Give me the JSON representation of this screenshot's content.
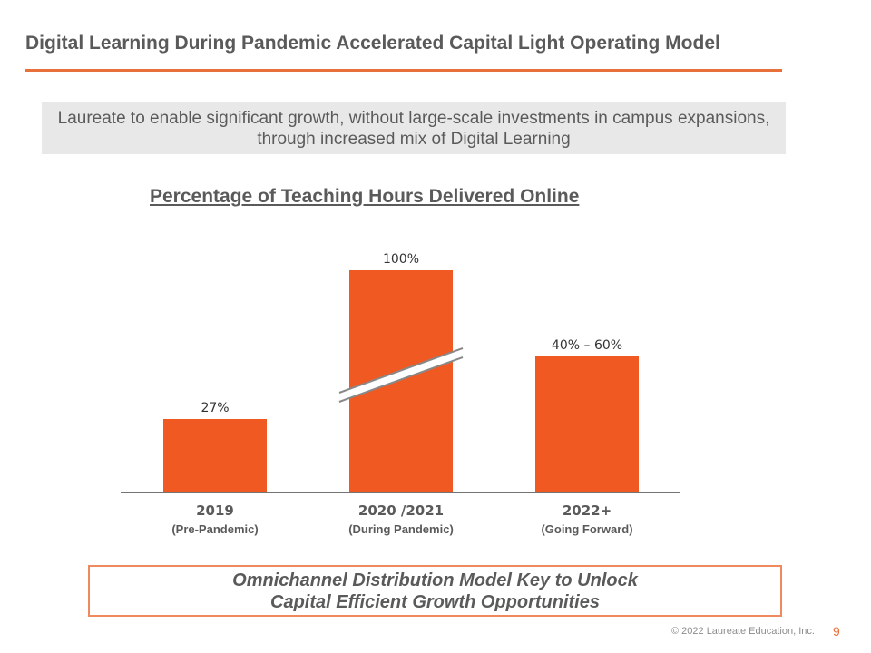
{
  "slide": {
    "title": "Digital Learning During Pandemic Accelerated Capital Light Operating Model",
    "callout": "Laureate to enable significant growth, without large-scale investments in campus expansions, through increased mix of Digital Learning",
    "footer_line1": "Omnichannel Distribution Model Key to Unlock",
    "footer_line2": "Capital Efficient Growth Opportunities",
    "copyright": "© 2022 Laureate Education, Inc.",
    "page_number": "9"
  },
  "colors": {
    "bar": "#f05a22",
    "accent": "#e8703a",
    "text": "#5a5a5a"
  },
  "chart_data": {
    "type": "bar",
    "title": "Percentage of Teaching Hours Delivered Online",
    "categories": [
      "2019",
      "2020 /2021",
      "2022+"
    ],
    "subcategories": [
      "(Pre-Pandemic)",
      "(During Pandemic)",
      "(Going Forward)"
    ],
    "values": [
      27,
      100,
      50
    ],
    "value_range": [
      null,
      null,
      [
        40,
        60
      ]
    ],
    "data_labels": [
      "27%",
      "100%",
      "40% – 60%"
    ],
    "axis_break_on_category": "2020 /2021",
    "xlabel": "",
    "ylabel": "",
    "grid": false,
    "legend": "none"
  }
}
